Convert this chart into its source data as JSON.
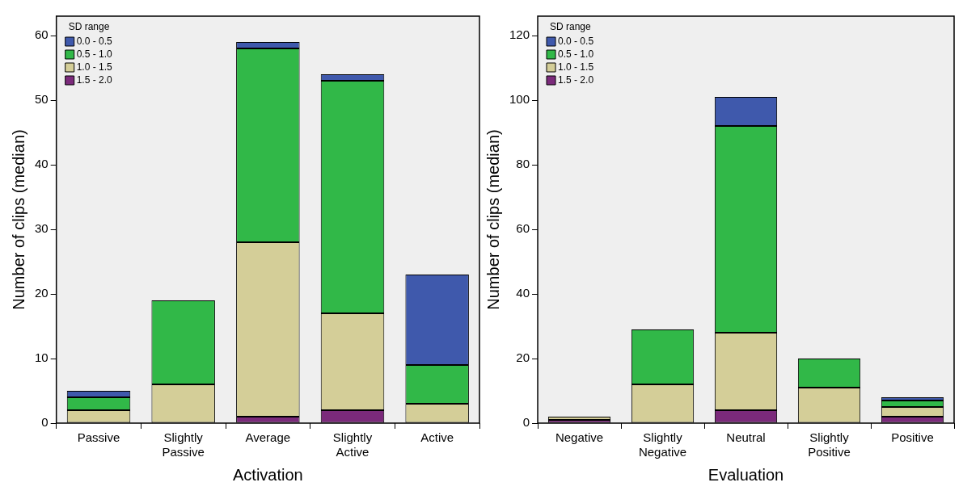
{
  "chart_data": [
    {
      "type": "bar",
      "stacked": true,
      "xlabel": "Activation",
      "ylabel": "Number of clips (median)",
      "legend_title": "SD range",
      "legend": "top left",
      "grid": false,
      "categories": [
        "Passive",
        "Slightly Passive",
        "Average",
        "Slightly Active",
        "Active"
      ],
      "ylim": [
        0,
        63
      ],
      "yticks": [
        0,
        10,
        20,
        30,
        40,
        50,
        60
      ],
      "series": [
        {
          "name": "1.5 - 2.0",
          "color": "#7b2a7b",
          "values": [
            0,
            0,
            1,
            2,
            0
          ]
        },
        {
          "name": "1.0 - 1.5",
          "color": "#d4ce98",
          "values": [
            2,
            6,
            27,
            15,
            3
          ]
        },
        {
          "name": "0.5 - 1.0",
          "color": "#31b848",
          "values": [
            2,
            13,
            30,
            36,
            6
          ]
        },
        {
          "name": "0.0 - 0.5",
          "color": "#3f59ac",
          "values": [
            1,
            0,
            1,
            1,
            14
          ]
        }
      ]
    },
    {
      "type": "bar",
      "stacked": true,
      "xlabel": "Evaluation",
      "ylabel": "Number of clips (median)",
      "legend_title": "SD range",
      "legend": "top left",
      "grid": false,
      "categories": [
        "Negative",
        "Slightly Negative",
        "Neutral",
        "Slightly Positive",
        "Positive"
      ],
      "ylim": [
        0,
        126
      ],
      "yticks": [
        0,
        20,
        40,
        60,
        80,
        100,
        120
      ],
      "series": [
        {
          "name": "1.5 - 2.0",
          "color": "#7b2a7b",
          "values": [
            1,
            0,
            4,
            0,
            2
          ]
        },
        {
          "name": "1.0 - 1.5",
          "color": "#d4ce98",
          "values": [
            1,
            12,
            24,
            11,
            3
          ]
        },
        {
          "name": "0.5 - 1.0",
          "color": "#31b848",
          "values": [
            0,
            17,
            64,
            9,
            2
          ]
        },
        {
          "name": "0.0 - 0.5",
          "color": "#3f59ac",
          "values": [
            0,
            0,
            9,
            0,
            1
          ]
        }
      ]
    }
  ]
}
